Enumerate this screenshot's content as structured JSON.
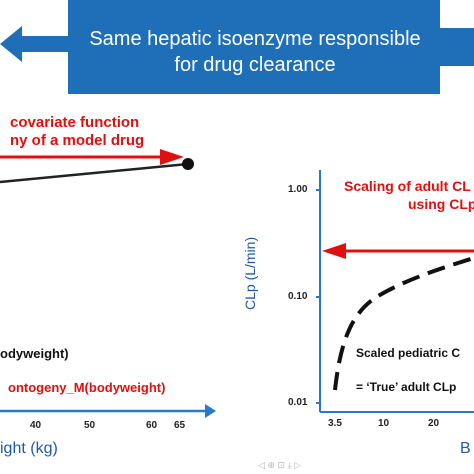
{
  "banner": {
    "line1": "Same hepatic isoenzyme responsible",
    "line2": "for drug clearance",
    "color": "#1f6fb8"
  },
  "left_panel": {
    "title_line1": "covariate function",
    "title_line2": "ny of a model drug",
    "legend_1": "odyweight)",
    "legend_2": "ontogeny_M(bodyweight)",
    "x_ticks": [
      "40",
      "50",
      "60",
      "65"
    ],
    "x_label": "ight (kg)"
  },
  "right_panel": {
    "title_line1": "Scaling of adult CL",
    "title_line2": "using CLp",
    "y_label": "CLp (L/min)",
    "y_ticks": [
      "1.00",
      "0.10",
      "0.01"
    ],
    "x_ticks": [
      "3.5",
      "10",
      "20"
    ],
    "x_label_partial": "B",
    "legend_1": "Scaled pediatric C",
    "legend_2": "= ‘True’ adult CLp"
  },
  "colors": {
    "arrow_blue": "#2a78c8",
    "red": "#e01010",
    "axis": "#2a78c8"
  }
}
